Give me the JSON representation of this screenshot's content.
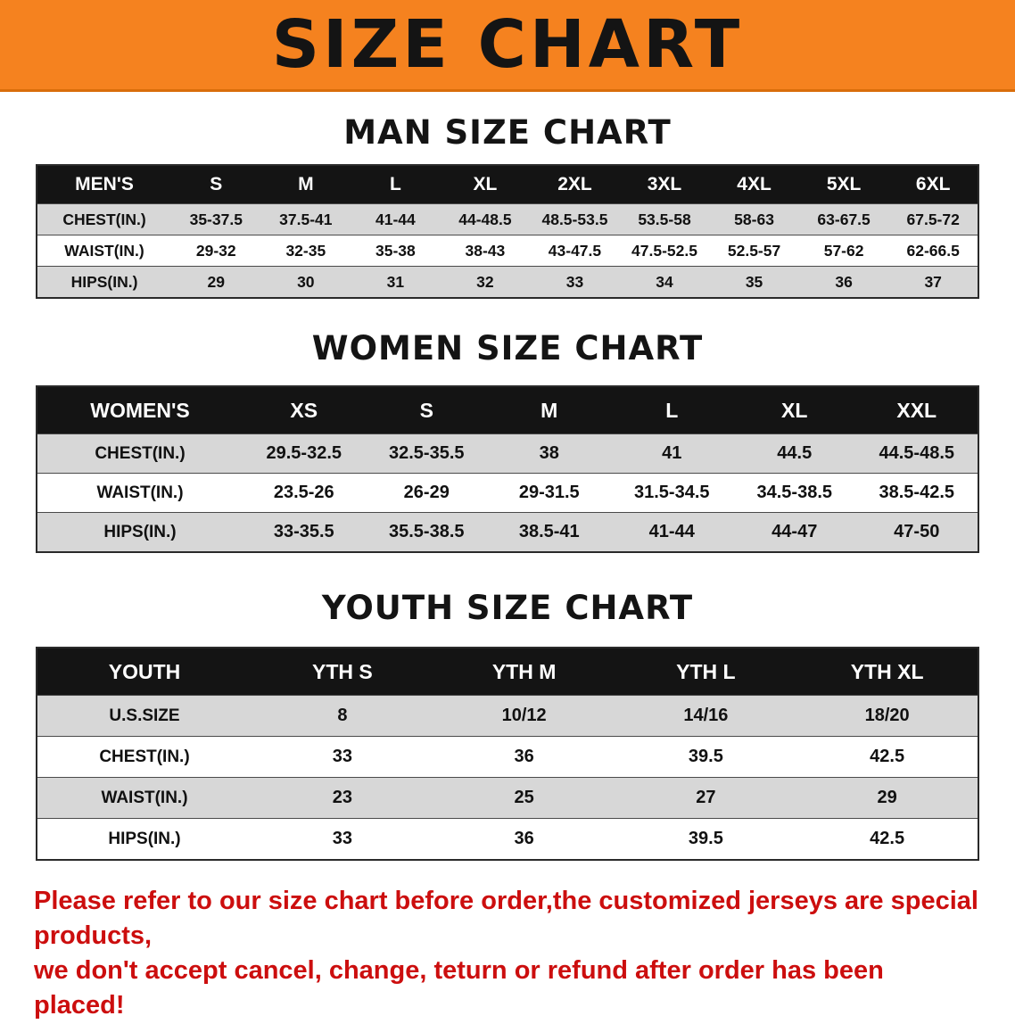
{
  "banner": {
    "title": "SIZE CHART"
  },
  "men": {
    "heading": "MAN SIZE CHART",
    "corner": "MEN'S",
    "columns": [
      "S",
      "M",
      "L",
      "XL",
      "2XL",
      "3XL",
      "4XL",
      "5XL",
      "6XL"
    ],
    "rows": [
      {
        "label": "CHEST(IN.)",
        "values": [
          "35-37.5",
          "37.5-41",
          "41-44",
          "44-48.5",
          "48.5-53.5",
          "53.5-58",
          "58-63",
          "63-67.5",
          "67.5-72"
        ]
      },
      {
        "label": "WAIST(IN.)",
        "values": [
          "29-32",
          "32-35",
          "35-38",
          "38-43",
          "43-47.5",
          "47.5-52.5",
          "52.5-57",
          "57-62",
          "62-66.5"
        ]
      },
      {
        "label": "HIPS(IN.)",
        "values": [
          "29",
          "30",
          "31",
          "32",
          "33",
          "34",
          "35",
          "36",
          "37"
        ]
      }
    ]
  },
  "women": {
    "heading": "WOMEN SIZE CHART",
    "corner": "WOMEN'S",
    "columns": [
      "XS",
      "S",
      "M",
      "L",
      "XL",
      "XXL"
    ],
    "rows": [
      {
        "label": "CHEST(IN.)",
        "values": [
          "29.5-32.5",
          "32.5-35.5",
          "38",
          "41",
          "44.5",
          "44.5-48.5"
        ]
      },
      {
        "label": "WAIST(IN.)",
        "values": [
          "23.5-26",
          "26-29",
          "29-31.5",
          "31.5-34.5",
          "34.5-38.5",
          "38.5-42.5"
        ]
      },
      {
        "label": "HIPS(IN.)",
        "values": [
          "33-35.5",
          "35.5-38.5",
          "38.5-41",
          "41-44",
          "44-47",
          "47-50"
        ]
      }
    ]
  },
  "youth": {
    "heading": "YOUTH SIZE CHART",
    "corner": "YOUTH",
    "columns": [
      "YTH S",
      "YTH M",
      "YTH L",
      "YTH XL"
    ],
    "rows": [
      {
        "label": "U.S.SIZE",
        "values": [
          "8",
          "10/12",
          "14/16",
          "18/20"
        ]
      },
      {
        "label": "CHEST(IN.)",
        "values": [
          "33",
          "36",
          "39.5",
          "42.5"
        ]
      },
      {
        "label": "WAIST(IN.)",
        "values": [
          "23",
          "25",
          "27",
          "29"
        ]
      },
      {
        "label": "HIPS(IN.)",
        "values": [
          "33",
          "36",
          "39.5",
          "42.5"
        ]
      }
    ]
  },
  "footer": {
    "line1": "Please refer to our size chart before order,the customized jerseys are special products,",
    "line2": "we don't accept cancel, change, teturn or refund after order has been placed!"
  },
  "colors": {
    "banner_orange": "#f5821f",
    "header_black": "#141414",
    "row_gray": "#d7d7d7",
    "note_red": "#cc0e0e"
  }
}
